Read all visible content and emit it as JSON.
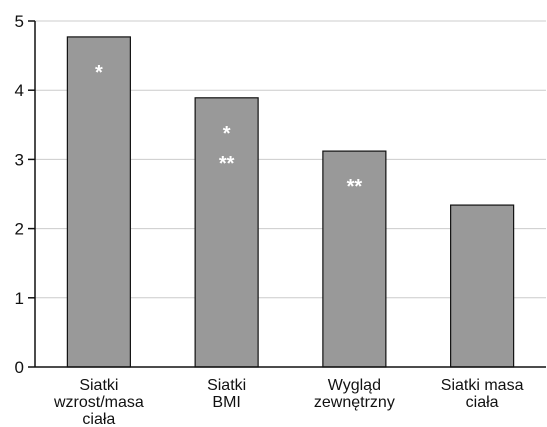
{
  "chart_data": {
    "type": "bar",
    "title": "",
    "xlabel": "",
    "ylabel": "",
    "ylim": [
      0,
      5
    ],
    "yticks": [
      "0",
      "1",
      "2",
      "3",
      "4",
      "5"
    ],
    "grid": true,
    "legend": "none",
    "categories": [
      [
        "Siatki",
        "wzrost/masa",
        "ciała"
      ],
      [
        "Siatki",
        "BMI"
      ],
      [
        "Wygląd",
        "zewnętrzny"
      ],
      [
        "Siatki masa",
        "ciała"
      ]
    ],
    "values": [
      4.77,
      3.89,
      3.12,
      2.34
    ],
    "annotations": [
      [
        "*"
      ],
      [
        "*",
        "**"
      ],
      [
        "**"
      ],
      []
    ],
    "colors": {
      "bar": "#999999",
      "bar_stroke": "#111111",
      "grid": "#cccccc",
      "axis": "#111111",
      "annotation": "#ffffff"
    }
  }
}
